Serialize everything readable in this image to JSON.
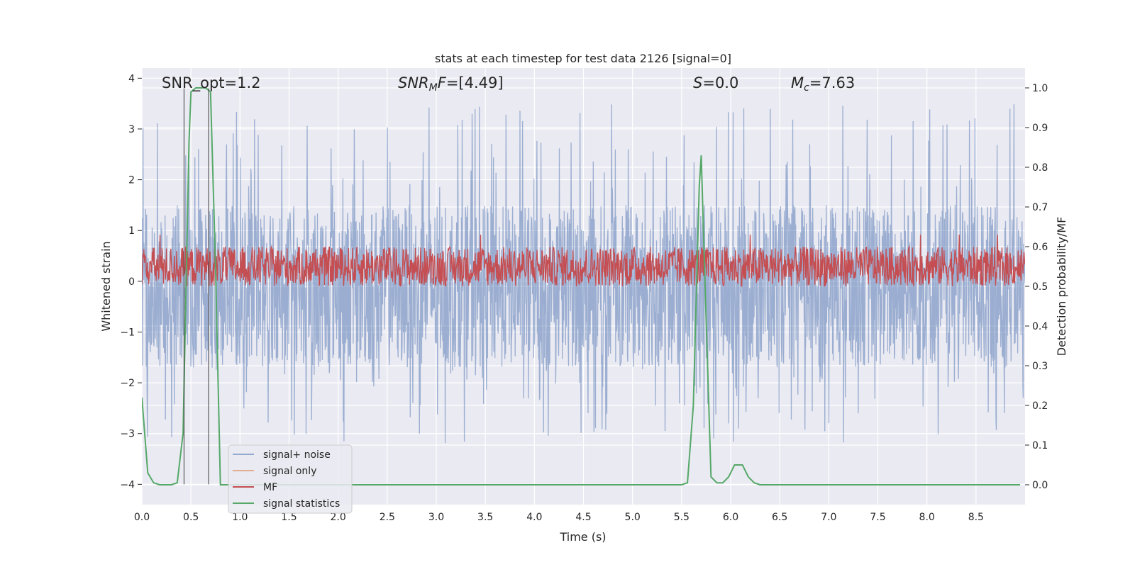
{
  "chart_data": {
    "type": "line",
    "title": "stats at each timestep for test data 2126 [signal=0]",
    "xlabel": "Time (s)",
    "ylabel": "Whitened strain",
    "y2label": "Detection probability/MF",
    "xlim": [
      0,
      9.0
    ],
    "ylim": [
      -4.4,
      4.2
    ],
    "y2lim": [
      -0.05,
      1.05
    ],
    "x_ticks": [
      0.0,
      0.5,
      1.0,
      1.5,
      2.0,
      2.5,
      3.0,
      3.5,
      4.0,
      4.5,
      5.0,
      5.5,
      6.0,
      6.5,
      7.0,
      7.5,
      8.0,
      8.5
    ],
    "x_tick_labels": [
      "0.0",
      "0.5",
      "1.0",
      "1.5",
      "2.0",
      "2.5",
      "3.0",
      "3.5",
      "4.0",
      "4.5",
      "5.0",
      "5.5",
      "6.0",
      "6.5",
      "7.0",
      "7.5",
      "8.0",
      "8.5"
    ],
    "y_ticks": [
      4,
      3,
      2,
      1,
      0,
      -1,
      -2,
      -3,
      -4
    ],
    "y_tick_labels": [
      "4",
      "3",
      "2",
      "1",
      "0",
      "−1",
      "−2",
      "−3",
      "−4"
    ],
    "y2_ticks": [
      1.0,
      0.9,
      0.8,
      0.7,
      0.6,
      0.5,
      0.4,
      0.3,
      0.2,
      0.1,
      0.0
    ],
    "y2_tick_labels": [
      "1.0",
      "0.9",
      "0.8",
      "0.7",
      "0.6",
      "0.5",
      "0.4",
      "0.3",
      "0.2",
      "0.1",
      "0.0"
    ],
    "grid": true,
    "legend_position": "lower-left",
    "annotations": [
      {
        "label": "SNR_opt",
        "value": "=1.2"
      },
      {
        "label": "SNR",
        "sub": "M",
        "tail": "F",
        "value": "=[4.49]"
      },
      {
        "label": "S",
        "value": "=0.0"
      },
      {
        "label": "M",
        "sub": "c",
        "value": "=7.63"
      }
    ],
    "vertical_lines": [
      0.43,
      0.68
    ],
    "series": [
      {
        "name": "signal+ noise",
        "color": "#4c72b0",
        "axis": "left",
        "style": "noise",
        "noise_band": [
          -1.7,
          1.5
        ],
        "noise_extremes": [
          -4.0,
          3.8
        ]
      },
      {
        "name": "signal only",
        "color": "#dd8452",
        "axis": "left",
        "style": "flat",
        "values_note": ""
      },
      {
        "name": "MF",
        "color": "#c44e52",
        "axis": "right",
        "style": "band",
        "band": [
          0.5,
          0.6
        ]
      },
      {
        "name": "signal statistics",
        "color": "#55a868",
        "axis": "right",
        "style": "line",
        "x": [
          0.0,
          0.06,
          0.12,
          0.18,
          0.24,
          0.3,
          0.36,
          0.42,
          0.45,
          0.48,
          0.5,
          0.55,
          0.6,
          0.65,
          0.7,
          0.75,
          0.8,
          0.86,
          5.5,
          5.56,
          5.62,
          5.68,
          5.7,
          5.74,
          5.8,
          5.86,
          5.92,
          5.98,
          6.04,
          6.08,
          6.12,
          6.18,
          6.24,
          6.3,
          8.95
        ],
        "y": [
          0.22,
          0.03,
          0.005,
          0.0,
          0.0,
          0.0,
          0.005,
          0.13,
          0.5,
          0.86,
          0.99,
          1.0,
          1.0,
          1.0,
          0.99,
          0.55,
          0.0,
          0.0,
          0.0,
          0.005,
          0.2,
          0.75,
          0.83,
          0.5,
          0.02,
          0.005,
          0.005,
          0.02,
          0.05,
          0.05,
          0.05,
          0.02,
          0.005,
          0.0,
          0.0
        ]
      }
    ]
  }
}
